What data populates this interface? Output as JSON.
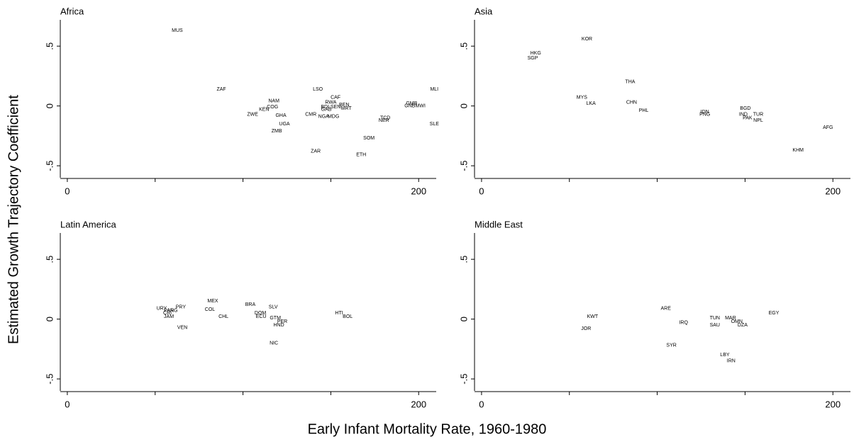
{
  "xlabel": "Early Infant Mortality Rate, 1960-1980",
  "ylabel": "Estimated Growth Trajectory Coefficient",
  "chart_data": [
    {
      "type": "scatter",
      "title": "Africa",
      "labels": [
        "MUS",
        "ZAF",
        "LSO",
        "MLI",
        "NAM",
        "CAF",
        "RWA",
        "BEN",
        "KEN",
        "COG",
        "GHA",
        "ZWE",
        "CMR",
        "GMB",
        "GNB",
        "MWI",
        "GAB",
        "BDI",
        "SEN",
        "MRT",
        "NGA",
        "MDG",
        "UGA",
        "ZMB",
        "NER",
        "TCD",
        "SLE",
        "SOM",
        "ZAR",
        "ETH"
      ],
      "x": [
        62.6,
        87.7,
        142.6,
        208.9,
        117.6,
        152.7,
        150,
        157.6,
        112,
        116.8,
        121.6,
        105.5,
        138.6,
        196,
        195,
        201,
        147.5,
        146.7,
        152.7,
        158.8,
        145.9,
        151.5,
        123.6,
        119.2,
        180.2,
        181,
        208.9,
        171.7,
        141.4,
        167.3
      ],
      "values": [
        0.63,
        0.14,
        0.14,
        0.14,
        0.04,
        0.07,
        0.03,
        0.01,
        -0.03,
        -0.01,
        -0.08,
        -0.07,
        -0.07,
        0.02,
        0,
        0,
        -0.03,
        -0.01,
        -0.01,
        -0.02,
        -0.09,
        -0.09,
        -0.15,
        -0.21,
        -0.12,
        -0.1,
        -0.15,
        -0.27,
        -0.38,
        -0.41
      ],
      "xlim": [
        -4,
        210
      ],
      "ylim": [
        -0.6,
        0.72
      ],
      "xticks": [
        0,
        200
      ],
      "xminorticks": [
        50,
        100,
        150
      ],
      "yticks": [
        {
          "value": 0.5,
          "label": ".5"
        },
        0,
        {
          "value": -0.5,
          "label": "-.5"
        }
      ]
    },
    {
      "type": "scatter",
      "title": "Asia",
      "labels": [
        "KOR",
        "HKG",
        "SGP",
        "THA",
        "MYS",
        "LKA",
        "CHN",
        "PHL",
        "IDN",
        "PNG",
        "BGD",
        "IND",
        "TUR",
        "PAK",
        "NPL",
        "AFG",
        "KHM"
      ],
      "x": [
        60,
        30.8,
        29.1,
        84.6,
        57.1,
        62.3,
        85.4,
        92.3,
        127.1,
        127.1,
        150.2,
        149,
        157.5,
        151.4,
        157.5,
        197.2,
        180.2
      ],
      "values": [
        0.56,
        0.44,
        0.4,
        0.2,
        0.07,
        0.02,
        0.03,
        -0.04,
        -0.05,
        -0.07,
        -0.02,
        -0.07,
        -0.07,
        -0.1,
        -0.12,
        -0.18,
        -0.37
      ],
      "xlim": [
        -4,
        210
      ],
      "ylim": [
        -0.6,
        0.72
      ],
      "xticks": [
        0,
        200
      ],
      "xminorticks": [
        50,
        100,
        150
      ],
      "yticks": [
        {
          "value": 0.5,
          "label": ".5"
        },
        0,
        {
          "value": -0.5,
          "label": "-.5"
        }
      ]
    },
    {
      "type": "scatter",
      "title": "Latin America",
      "labels": [
        "URY",
        "PAN",
        "ARG",
        "CRI",
        "JAM",
        "PRY",
        "VEN",
        "MEX",
        "COL",
        "CHL",
        "BRA",
        "SLV",
        "DOM",
        "ECU",
        "GTM",
        "PER",
        "HND",
        "NIC",
        "HTI",
        "BOL"
      ],
      "x": [
        53.7,
        57.8,
        59.8,
        57,
        57.8,
        64.6,
        65.5,
        82.8,
        81.2,
        88.9,
        104.2,
        117.2,
        109.9,
        110.3,
        118.4,
        122.4,
        120.4,
        117.6,
        154.7,
        159.6
      ],
      "values": [
        0.09,
        0.07,
        0.07,
        0.05,
        0.02,
        0.1,
        -0.07,
        0.15,
        0.08,
        0.02,
        0.12,
        0.1,
        0.05,
        0.02,
        0.01,
        -0.02,
        -0.05,
        -0.2,
        0.05,
        0.02
      ],
      "xlim": [
        -4,
        210
      ],
      "ylim": [
        -0.6,
        0.72
      ],
      "xticks": [
        0,
        200
      ],
      "xminorticks": [
        50,
        100,
        150
      ],
      "yticks": [
        {
          "value": 0.5,
          "label": ".5"
        },
        0,
        {
          "value": -0.5,
          "label": "-.5"
        }
      ]
    },
    {
      "type": "scatter",
      "title": "Middle East",
      "labels": [
        "KWT",
        "JOR",
        "ARE",
        "IRQ",
        "TUN",
        "MAR",
        "OMN",
        "SAU",
        "DZA",
        "EGY",
        "SYR",
        "LBY",
        "IRN"
      ],
      "x": [
        63.2,
        59.5,
        104.9,
        115,
        132.8,
        141.7,
        145.3,
        132.8,
        148.6,
        166.4,
        108.1,
        138.5,
        142.1
      ],
      "values": [
        0.02,
        -0.08,
        0.09,
        -0.03,
        0.01,
        0.01,
        -0.02,
        -0.05,
        -0.05,
        0.05,
        -0.22,
        -0.3,
        -0.35
      ],
      "xlim": [
        -4,
        210
      ],
      "ylim": [
        -0.6,
        0.72
      ],
      "xticks": [
        0,
        200
      ],
      "xminorticks": [
        50,
        100,
        150
      ],
      "yticks": [
        {
          "value": 0.5,
          "label": ".5"
        },
        0,
        {
          "value": -0.5,
          "label": "-.5"
        }
      ]
    }
  ]
}
